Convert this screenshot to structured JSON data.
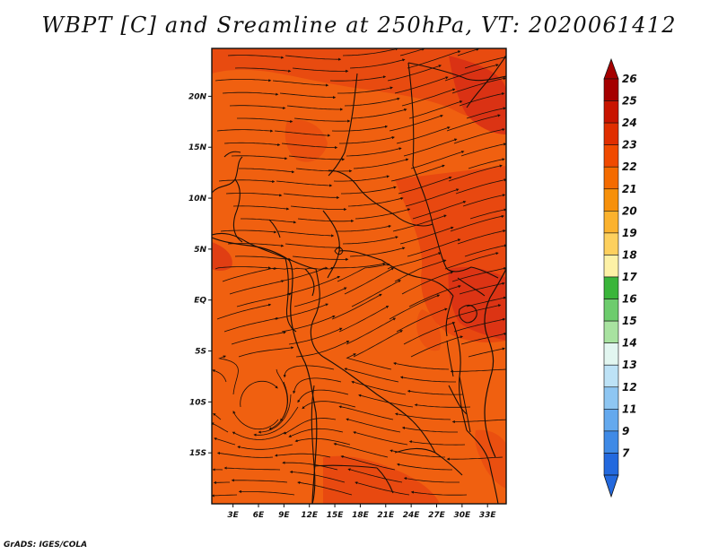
{
  "title": "WBPT [C] and Sreamline at 250hPa, VT: 2020061412",
  "credit": "GrADS: IGES/COLA",
  "map": {
    "lat_labels": [
      {
        "label": "20N",
        "lat": 20
      },
      {
        "label": "15N",
        "lat": 15
      },
      {
        "label": "10N",
        "lat": 10
      },
      {
        "label": "5N",
        "lat": 5
      },
      {
        "label": "EQ",
        "lat": 0
      },
      {
        "label": "5S",
        "lat": -5
      },
      {
        "label": "10S",
        "lat": -10
      },
      {
        "label": "15S",
        "lat": -15
      }
    ],
    "lon_labels": [
      {
        "label": "3E",
        "lon": 3
      },
      {
        "label": "6E",
        "lon": 6
      },
      {
        "label": "9E",
        "lon": 9
      },
      {
        "label": "12E",
        "lon": 12
      },
      {
        "label": "15E",
        "lon": 15
      },
      {
        "label": "18E",
        "lon": 18
      },
      {
        "label": "21E",
        "lon": 21
      },
      {
        "label": "24E",
        "lon": 24
      },
      {
        "label": "27E",
        "lon": 27
      },
      {
        "label": "30E",
        "lon": 30
      },
      {
        "label": "33E",
        "lon": 33
      }
    ],
    "lat_range": [
      -20,
      24.7
    ],
    "lon_range": [
      0.5,
      35.2
    ]
  },
  "colorbar": {
    "labels": [
      "26",
      "25",
      "24",
      "23",
      "22",
      "21",
      "20",
      "19",
      "18",
      "17",
      "16",
      "15",
      "14",
      "13",
      "12",
      "11",
      "9",
      "7"
    ],
    "colors": [
      "#a50000",
      "#c81400",
      "#e02e00",
      "#f04a00",
      "#f46b00",
      "#f7900a",
      "#fbb22e",
      "#fdd05e",
      "#fdf1a6",
      "#3ab53a",
      "#6dcc6d",
      "#a8e2a0",
      "#e2f6f0",
      "#bde2f6",
      "#8ec6f2",
      "#64a9ee",
      "#3f8ae6",
      "#2369de"
    ],
    "top_arrow_color": "#a50000",
    "bottom_arrow_color": "#2369de"
  },
  "field": {
    "base_color": "#f06010",
    "warm_color": "#e64410",
    "hot_color": "#d83015"
  }
}
